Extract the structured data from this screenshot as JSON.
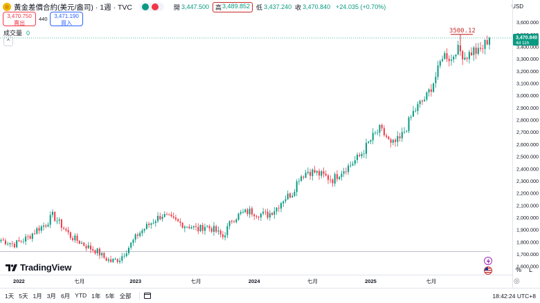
{
  "header": {
    "symbol": "黃金差價合約(美元/盎司) · 1週 · TVC",
    "open_label": "開",
    "open_value": "3,447.500",
    "high_label": "高",
    "high_value": "3,489.852",
    "low_label": "低",
    "low_value": "3,437.240",
    "close_label": "收",
    "close_value": "3,470.840",
    "change": "+24.035 (+0.70%)",
    "currency": "USD"
  },
  "trade": {
    "sell_price": "3,470.750",
    "sell_label": "賣出",
    "spread": "440",
    "buy_price": "3,471.190",
    "buy_label": "買入"
  },
  "volume": {
    "label": "成交量",
    "value": "0"
  },
  "price_tag": {
    "price": "3,470.840",
    "countdown": "4d 11h"
  },
  "annotation": {
    "text": "3500.12"
  },
  "logo": {
    "text": "TradingView"
  },
  "scale_buttons": {
    "percent": "%",
    "log": "L"
  },
  "toolbar": {
    "ranges": [
      "1天",
      "5天",
      "1月",
      "3月",
      "6月",
      "YTD",
      "1年",
      "5年",
      "全部"
    ],
    "clock": "18:42:24 UTC+8"
  },
  "colors": {
    "up": "#089981",
    "down": "#f23645",
    "accent": "#2962ff"
  },
  "chart_data": {
    "type": "candlestick",
    "x_tick_labels": [
      "2022",
      "七月",
      "2023",
      "七月",
      "2024",
      "七月",
      "2025",
      "七月"
    ],
    "y_ticks": [
      1600,
      1700,
      1800,
      1900,
      2000,
      2100,
      2200,
      2300,
      2400,
      2500,
      2600,
      2700,
      2800,
      2900,
      3000,
      3100,
      3200,
      3300,
      3400,
      3500,
      3600
    ],
    "y_tick_labels": [
      "1,600.000",
      "1,700.000",
      "1,800.000",
      "1,900.000",
      "2,000.000",
      "2,100.000",
      "2,200.000",
      "2,300.000",
      "2,400.000",
      "2,500.000",
      "2,600.000",
      "2,700.000",
      "2,800.000",
      "2,900.000",
      "3,000.000",
      "3,100.000",
      "3,200.000",
      "3,300.000",
      "3,400.000",
      "3,500.000",
      "3,600.000"
    ],
    "ylim": [
      1530,
      3635
    ],
    "horizontal_lines": [
      3470.84,
      1720
    ],
    "anchors": [
      [
        0,
        1815
      ],
      [
        6,
        1780
      ],
      [
        12,
        1835
      ],
      [
        16,
        1900
      ],
      [
        20,
        1945
      ],
      [
        23,
        2015
      ],
      [
        27,
        1935
      ],
      [
        31,
        1845
      ],
      [
        35,
        1800
      ],
      [
        39,
        1755
      ],
      [
        43,
        1720
      ],
      [
        46,
        1670
      ],
      [
        49,
        1640
      ],
      [
        53,
        1660
      ],
      [
        57,
        1755
      ],
      [
        61,
        1860
      ],
      [
        65,
        1925
      ],
      [
        69,
        1985
      ],
      [
        72,
        2020
      ],
      [
        75,
        1990
      ],
      [
        79,
        1960
      ],
      [
        82,
        1935
      ],
      [
        85,
        1925
      ],
      [
        88,
        1900
      ],
      [
        91,
        1930
      ],
      [
        95,
        1900
      ],
      [
        99,
        1840
      ],
      [
        103,
        1980
      ],
      [
        107,
        2030
      ],
      [
        111,
        2050
      ],
      [
        115,
        2030
      ],
      [
        119,
        2020
      ],
      [
        123,
        2080
      ],
      [
        126,
        2150
      ],
      [
        130,
        2200
      ],
      [
        133,
        2330
      ],
      [
        137,
        2380
      ],
      [
        140,
        2370
      ],
      [
        144,
        2340
      ],
      [
        148,
        2310
      ],
      [
        152,
        2380
      ],
      [
        156,
        2430
      ],
      [
        160,
        2500
      ],
      [
        163,
        2580
      ],
      [
        166,
        2660
      ],
      [
        169,
        2720
      ],
      [
        172,
        2660
      ],
      [
        174,
        2590
      ],
      [
        178,
        2640
      ],
      [
        181,
        2740
      ],
      [
        184,
        2860
      ],
      [
        187,
        2930
      ],
      [
        190,
        2990
      ],
      [
        193,
        3110
      ],
      [
        195,
        3200
      ],
      [
        197,
        3330
      ],
      [
        199,
        3330
      ],
      [
        201,
        3290
      ],
      [
        203,
        3380
      ],
      [
        205,
        3360
      ],
      [
        207,
        3320
      ],
      [
        209,
        3340
      ],
      [
        211,
        3370
      ],
      [
        213,
        3350
      ],
      [
        215,
        3395
      ],
      [
        217,
        3450
      ],
      [
        218,
        3471
      ]
    ],
    "highlight": {
      "x": 205,
      "high": 3500.12
    },
    "last_close": 3470.84
  }
}
